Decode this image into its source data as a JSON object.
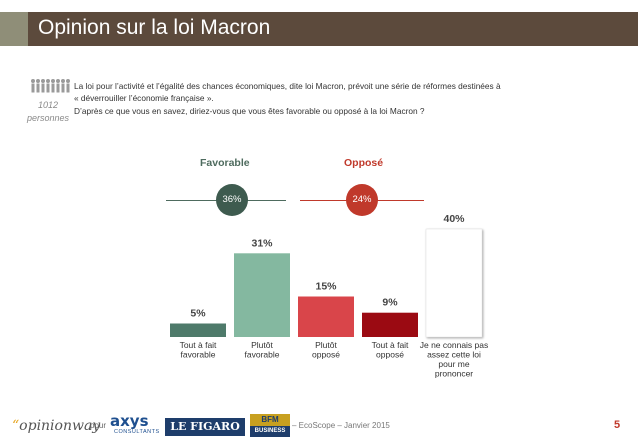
{
  "header": {
    "title": "Opinion sur la loi Macron"
  },
  "sample": {
    "count": "1012",
    "unit": "personnes"
  },
  "intro": {
    "line1": "La loi pour l’activité et l’égalité des chances économiques, dite loi Macron, prévoit une série de réformes destinées à",
    "line2": "« déverrouiller l’économie française ».",
    "line3": "D’après ce que vous en savez, diriez-vous que vous êtes favorable ou opposé à la loi Macron ?"
  },
  "summary": {
    "favorable_label": "Favorable",
    "favorable_value": "36%",
    "oppose_label": "Opposé",
    "oppose_value": "24%",
    "colors": {
      "favorable": "#3e5b4f",
      "oppose": "#c0392b"
    }
  },
  "chart_data": {
    "type": "bar",
    "categories": [
      [
        "Tout à fait",
        "favorable"
      ],
      [
        "Plutôt",
        "favorable"
      ],
      [
        "Plutôt",
        "opposé"
      ],
      [
        "Tout à fait",
        "opposé"
      ],
      [
        "Je ne connais pas",
        "assez cette loi",
        "pour me",
        "prononcer"
      ]
    ],
    "values": [
      5,
      31,
      15,
      9,
      40
    ],
    "value_labels": [
      "5%",
      "31%",
      "15%",
      "9%",
      "40%"
    ],
    "colors": [
      "#4e7a6a",
      "#84b8a0",
      "#d9454a",
      "#9b0a12",
      "#ffffff"
    ],
    "ylim": [
      0,
      40
    ]
  },
  "footer": {
    "brand": "opinionway",
    "pour": "pour",
    "axys": "axys",
    "axys_sub": "CONSULTANTS",
    "figaro": "LE FIGARO",
    "bfm": "BFM",
    "bfm_sub": "BUSINESS",
    "text": "– EcoScope – Janvier 2015",
    "page": "5"
  }
}
